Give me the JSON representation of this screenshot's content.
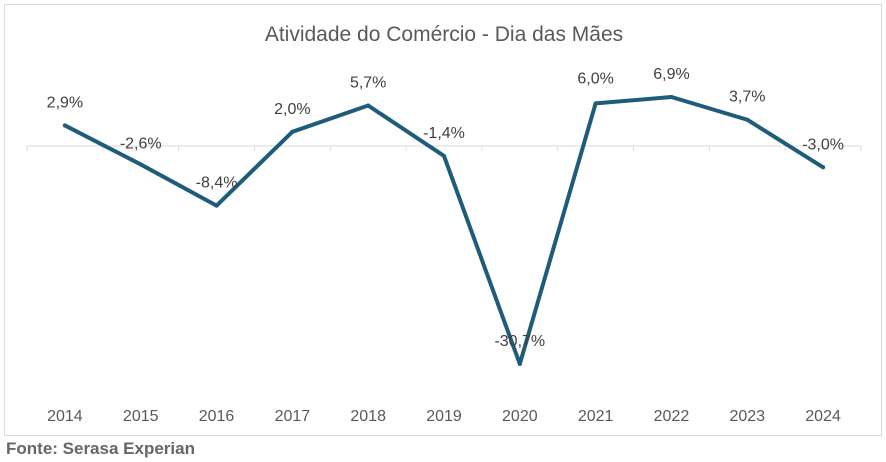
{
  "chart_data": {
    "type": "line",
    "title": "Atividade do Comércio - Dia das Mães",
    "categories": [
      "2014",
      "2015",
      "2016",
      "2017",
      "2018",
      "2019",
      "2020",
      "2021",
      "2022",
      "2023",
      "2024"
    ],
    "series": [
      {
        "name": "Atividade do Comércio",
        "values": [
          2.9,
          -2.6,
          -8.4,
          2.0,
          5.7,
          -1.4,
          -30.7,
          6.0,
          6.9,
          3.7,
          -3.0
        ]
      }
    ],
    "data_labels": [
      "2,9%",
      "-2,6%",
      "-8,4%",
      "2,0%",
      "5,7%",
      "-1,4%",
      "-30,7%",
      "6,0%",
      "6,9%",
      "3,7%",
      "-3,0%"
    ],
    "xlabel": "",
    "ylabel": "",
    "ylim": [
      -35,
      10
    ],
    "grid": false,
    "line_color": "#1f5c7a"
  },
  "footer": {
    "source": "Fonte: Serasa Experian"
  }
}
